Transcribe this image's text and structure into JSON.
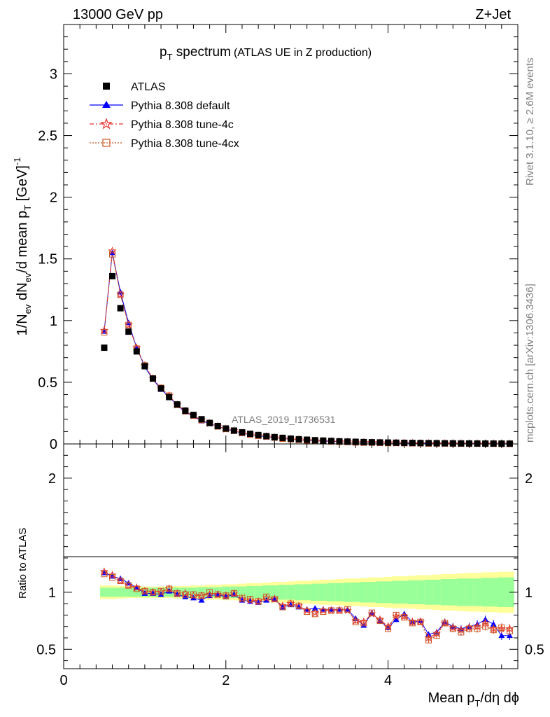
{
  "header": {
    "energy_label": "13000 GeV pp",
    "process_label": "Z+Jet",
    "title_main": "p",
    "title_sub": "T",
    "title_rest": " spectrum",
    "title_paren": "(ATLAS UE in Z production)",
    "analysis_id": "ATLAS_2019_I1736531",
    "rivet_label": "Rivet 3.1.10, ≥ 2.6M events",
    "mcplots_label": "mcplots.cern.ch [arXiv:1306.3436]"
  },
  "axes": {
    "xlabel": "Mean p_T/dη dϕ",
    "ylabel_top": "1/N_ev dN_ev/d mean p_T [GeV]^-1",
    "ylabel_bottom": "Ratio to ATLAS"
  },
  "legend": [
    {
      "name": "ATLAS",
      "marker": "square",
      "color": "#000000"
    },
    {
      "name": "Pythia 8.308 default",
      "marker": "triangle",
      "color": "#0000ff"
    },
    {
      "name": "Pythia 8.308 tune-4c",
      "marker": "star",
      "color": "#e8322e"
    },
    {
      "name": "Pythia 8.308 tune-4cx",
      "marker": "open-square",
      "color": "#cc5522"
    }
  ],
  "chart_data": {
    "type": "scatter",
    "xlim": [
      0,
      5.6
    ],
    "ylim_main": [
      0,
      3.4
    ],
    "ylim_ratio": [
      0.33,
      2.3
    ],
    "x_ticks": [
      "0",
      "2",
      "4"
    ],
    "y_ticks_main": [
      "0",
      "0.5",
      "1",
      "1.5",
      "2",
      "2.5",
      "3"
    ],
    "y_ticks_ratio": [
      "0.5",
      "1",
      "2"
    ],
    "x": [
      0.5,
      0.6,
      0.7,
      0.8,
      0.9,
      1.0,
      1.1,
      1.2,
      1.3,
      1.4,
      1.5,
      1.6,
      1.7,
      1.8,
      1.9,
      2.0,
      2.1,
      2.2,
      2.3,
      2.4,
      2.5,
      2.6,
      2.7,
      2.8,
      2.9,
      3.0,
      3.1,
      3.2,
      3.3,
      3.4,
      3.5,
      3.6,
      3.7,
      3.8,
      3.9,
      4.0,
      4.1,
      4.2,
      4.3,
      4.4,
      4.5,
      4.6,
      4.7,
      4.8,
      4.9,
      5.0,
      5.1,
      5.2,
      5.3,
      5.4,
      5.5
    ],
    "atlas": [
      0.78,
      1.36,
      1.1,
      0.91,
      0.75,
      0.63,
      0.53,
      0.45,
      0.38,
      0.32,
      0.27,
      0.235,
      0.2,
      0.17,
      0.145,
      0.125,
      0.108,
      0.094,
      0.082,
      0.072,
      0.063,
      0.055,
      0.049,
      0.043,
      0.038,
      0.034,
      0.03,
      0.027,
      0.024,
      0.021,
      0.019,
      0.017,
      0.015,
      0.0135,
      0.012,
      0.011,
      0.0098,
      0.0088,
      0.0079,
      0.0071,
      0.0064,
      0.0057,
      0.0051,
      0.0046,
      0.0041,
      0.0037,
      0.0033,
      0.003,
      0.0027,
      0.0024,
      0.0022
    ],
    "ratio_default": [
      1.17,
      1.14,
      1.12,
      1.08,
      1.04,
      0.99,
      0.99,
      0.98,
      1.01,
      0.98,
      0.96,
      0.95,
      0.93,
      0.97,
      0.98,
      0.96,
      0.98,
      0.93,
      0.92,
      0.91,
      0.93,
      0.94,
      0.87,
      0.89,
      0.87,
      0.85,
      0.86,
      0.85,
      0.85,
      0.85,
      0.85,
      0.77,
      0.71,
      0.82,
      0.75,
      0.69,
      0.76,
      0.81,
      0.74,
      0.75,
      0.63,
      0.65,
      0.74,
      0.7,
      0.68,
      0.7,
      0.72,
      0.76,
      0.72,
      0.62,
      0.62
    ],
    "ratio_4c": [
      1.18,
      1.15,
      1.1,
      1.06,
      1.04,
      1.01,
      1.0,
      1.0,
      1.03,
      0.99,
      0.99,
      0.97,
      0.97,
      0.98,
      0.98,
      0.97,
      0.99,
      0.94,
      0.93,
      0.92,
      0.95,
      0.94,
      0.88,
      0.9,
      0.88,
      0.84,
      0.82,
      0.84,
      0.84,
      0.84,
      0.84,
      0.75,
      0.74,
      0.81,
      0.76,
      0.7,
      0.79,
      0.79,
      0.74,
      0.74,
      0.6,
      0.64,
      0.73,
      0.69,
      0.67,
      0.69,
      0.7,
      0.73,
      0.68,
      0.68,
      0.68
    ],
    "ratio_4cx": [
      1.16,
      1.13,
      1.1,
      1.06,
      1.03,
      1.01,
      1.0,
      1.01,
      1.03,
      0.99,
      0.98,
      0.98,
      0.97,
      1.0,
      0.98,
      0.97,
      0.99,
      0.95,
      0.94,
      0.92,
      0.96,
      0.94,
      0.87,
      0.9,
      0.88,
      0.83,
      0.81,
      0.83,
      0.84,
      0.84,
      0.85,
      0.74,
      0.73,
      0.82,
      0.75,
      0.68,
      0.8,
      0.78,
      0.73,
      0.74,
      0.58,
      0.62,
      0.73,
      0.68,
      0.65,
      0.68,
      0.68,
      0.7,
      0.67,
      0.69,
      0.66
    ],
    "band_inner": [
      0.04,
      0.04,
      0.04,
      0.04,
      0.04,
      0.04,
      0.04,
      0.04,
      0.04,
      0.04,
      0.04,
      0.04,
      0.045,
      0.045,
      0.045,
      0.05,
      0.05,
      0.05,
      0.055,
      0.055,
      0.06,
      0.06,
      0.065,
      0.065,
      0.07,
      0.07,
      0.075,
      0.075,
      0.08,
      0.08,
      0.085,
      0.085,
      0.09,
      0.09,
      0.095,
      0.095,
      0.1,
      0.1,
      0.105,
      0.105,
      0.11,
      0.11,
      0.115,
      0.115,
      0.12,
      0.12,
      0.12,
      0.125,
      0.125,
      0.13,
      0.13
    ],
    "band_outer": [
      0.06,
      0.06,
      0.055,
      0.05,
      0.05,
      0.05,
      0.05,
      0.05,
      0.05,
      0.055,
      0.055,
      0.06,
      0.06,
      0.065,
      0.065,
      0.07,
      0.07,
      0.075,
      0.08,
      0.08,
      0.085,
      0.09,
      0.09,
      0.095,
      0.1,
      0.1,
      0.105,
      0.11,
      0.11,
      0.115,
      0.12,
      0.12,
      0.125,
      0.13,
      0.13,
      0.135,
      0.14,
      0.14,
      0.145,
      0.15,
      0.15,
      0.155,
      0.16,
      0.16,
      0.165,
      0.17,
      0.17,
      0.175,
      0.175,
      0.18,
      0.18
    ],
    "colors": {
      "atlas": "#000000",
      "default": "#0000ff",
      "tune4c": "#e8322e",
      "tune4cx": "#cc5522",
      "band_inner": "#99ff99",
      "band_outer": "#ffff99"
    }
  }
}
